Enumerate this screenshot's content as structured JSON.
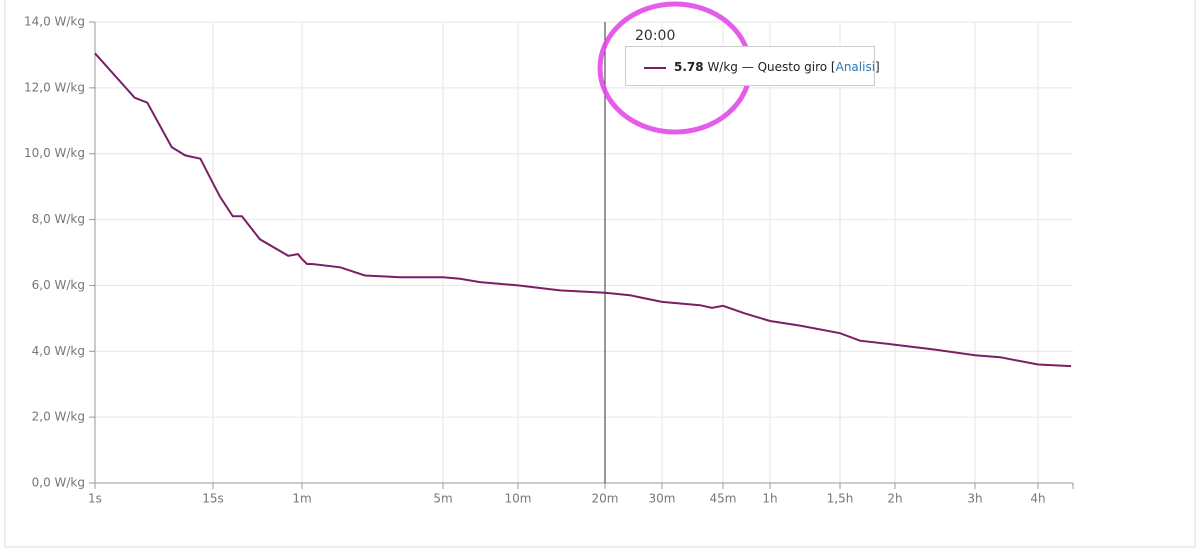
{
  "chart_data": {
    "type": "line",
    "x": [
      1,
      5.7,
      7.2,
      10.1,
      11.7,
      13.5,
      15,
      18.5,
      25,
      29.6,
      38.7,
      53,
      58,
      60,
      68.5,
      77,
      125,
      167,
      227,
      300,
      368,
      448,
      600,
      890,
      1200,
      1463,
      1800,
      2360,
      2538,
      2700,
      3120,
      3600,
      4371,
      5400,
      6055,
      7200,
      9000,
      10800,
      12229,
      14400,
      16100
    ],
    "series": [
      {
        "name": "Questo giro",
        "color": "#7b1f63",
        "values": [
          13.05,
          11.7,
          11.55,
          10.2,
          9.95,
          9.85,
          9.1,
          8.7,
          8.1,
          8.1,
          7.4,
          6.9,
          6.95,
          6.8,
          6.65,
          6.65,
          6.55,
          6.3,
          6.25,
          6.25,
          6.2,
          6.1,
          6.0,
          5.85,
          5.78,
          5.7,
          5.5,
          5.4,
          5.32,
          5.38,
          5.15,
          4.92,
          4.78,
          4.55,
          4.32,
          4.2,
          4.05,
          3.88,
          3.82,
          3.6,
          3.55
        ]
      }
    ],
    "xlim": [
      1,
      16200
    ],
    "xticks": [
      {
        "value": 1,
        "label": "1s"
      },
      {
        "value": 15,
        "label": "15s"
      },
      {
        "value": 60,
        "label": "1m"
      },
      {
        "value": 300,
        "label": "5m"
      },
      {
        "value": 600,
        "label": "10m"
      },
      {
        "value": 1200,
        "label": "20m"
      },
      {
        "value": 1800,
        "label": "30m"
      },
      {
        "value": 2700,
        "label": "45m"
      },
      {
        "value": 3600,
        "label": "1h"
      },
      {
        "value": 5400,
        "label": "1,5h"
      },
      {
        "value": 7200,
        "label": "2h"
      },
      {
        "value": 10800,
        "label": "3h"
      },
      {
        "value": 14400,
        "label": "4h"
      }
    ],
    "ylim": [
      0,
      14
    ],
    "yticks": [
      {
        "value": 0,
        "label": "0,0 W/kg"
      },
      {
        "value": 2,
        "label": "2,0 W/kg"
      },
      {
        "value": 4,
        "label": "4,0 W/kg"
      },
      {
        "value": 6,
        "label": "6,0 W/kg"
      },
      {
        "value": 8,
        "label": "8,0 W/kg"
      },
      {
        "value": 10,
        "label": "10,0 W/kg"
      },
      {
        "value": 12,
        "label": "12,0 W/kg"
      },
      {
        "value": 14,
        "label": "14,0 W/kg"
      }
    ],
    "grid": true,
    "tooltip": {
      "title": "20:00",
      "value": 5.78,
      "unit": "W/kg",
      "separator": "—",
      "series_label": "Questo giro",
      "bracket_open": "[",
      "link": "Analisi",
      "bracket_close": "]"
    }
  }
}
